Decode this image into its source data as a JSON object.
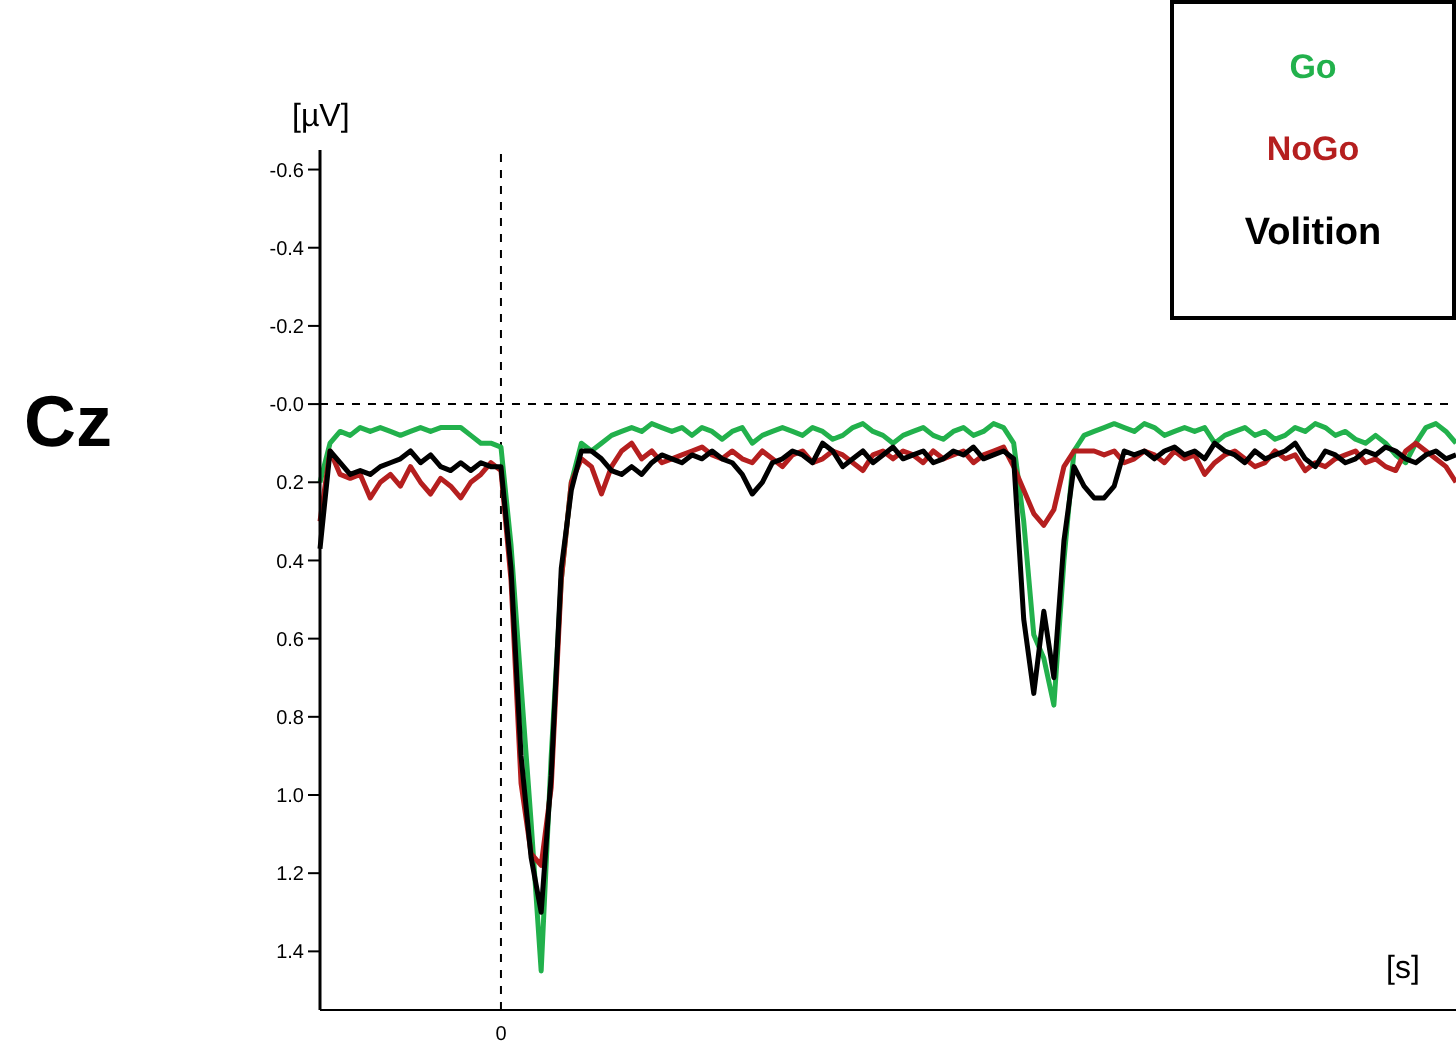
{
  "chart_data": {
    "type": "line",
    "xlabel": "[s]",
    "ylabel": "[µV]",
    "annotations": [
      "Cz"
    ],
    "categories": [
      null,
      null,
      null,
      null,
      null,
      null,
      null,
      null,
      null,
      null,
      null,
      null,
      null,
      null,
      null,
      null,
      null,
      null,
      "0",
      null,
      null,
      null,
      null,
      null,
      null,
      null,
      null,
      null,
      null,
      null,
      null,
      null,
      null,
      null,
      null,
      null,
      null,
      null,
      null,
      null,
      null,
      null,
      null,
      null,
      null,
      null,
      null,
      null,
      null,
      null,
      null,
      null,
      null,
      null,
      null,
      null,
      null,
      null,
      null,
      null,
      null,
      null,
      null,
      null,
      null,
      null,
      null,
      null,
      null,
      null,
      null,
      null,
      null,
      null,
      null,
      null,
      null,
      null,
      null,
      null,
      null,
      null,
      null,
      null,
      null,
      null,
      null,
      null,
      null,
      null,
      null,
      null,
      null,
      null,
      null,
      null,
      null,
      null,
      null,
      null,
      null,
      null,
      null,
      null,
      null,
      null,
      null,
      null,
      null,
      null,
      null,
      null,
      null,
      null
    ],
    "series": [
      {
        "name": "Go",
        "color": "#22b14c",
        "values": [
          0.2,
          0.1,
          0.07,
          0.08,
          0.06,
          0.07,
          0.06,
          0.07,
          0.08,
          0.07,
          0.06,
          0.07,
          0.06,
          0.06,
          0.06,
          0.08,
          0.1,
          0.1,
          0.11,
          0.36,
          0.72,
          1.07,
          1.45,
          0.9,
          0.45,
          0.2,
          0.1,
          0.12,
          0.1,
          0.08,
          0.07,
          0.06,
          0.07,
          0.05,
          0.06,
          0.07,
          0.06,
          0.08,
          0.06,
          0.07,
          0.09,
          0.07,
          0.06,
          0.1,
          0.08,
          0.07,
          0.06,
          0.07,
          0.08,
          0.06,
          0.07,
          0.09,
          0.08,
          0.06,
          0.05,
          0.07,
          0.08,
          0.1,
          0.08,
          0.07,
          0.06,
          0.08,
          0.09,
          0.07,
          0.06,
          0.08,
          0.07,
          0.05,
          0.06,
          0.1,
          0.3,
          0.59,
          0.65,
          0.77,
          0.4,
          0.12,
          0.08,
          0.07,
          0.06,
          0.05,
          0.06,
          0.07,
          0.05,
          0.06,
          0.08,
          0.07,
          0.06,
          0.07,
          0.06,
          0.1,
          0.08,
          0.07,
          0.06,
          0.08,
          0.07,
          0.09,
          0.08,
          0.06,
          0.07,
          0.05,
          0.06,
          0.08,
          0.07,
          0.09,
          0.1,
          0.08,
          0.1,
          0.13,
          0.15,
          0.1,
          0.06,
          0.05,
          0.07,
          0.1
        ]
      },
      {
        "name": "NoGo",
        "color": "#b51f1f",
        "values": [
          0.3,
          0.12,
          0.18,
          0.19,
          0.18,
          0.24,
          0.2,
          0.18,
          0.21,
          0.16,
          0.2,
          0.23,
          0.19,
          0.21,
          0.24,
          0.2,
          0.18,
          0.15,
          0.17,
          0.45,
          0.97,
          1.15,
          1.18,
          0.98,
          0.45,
          0.2,
          0.14,
          0.16,
          0.23,
          0.16,
          0.12,
          0.1,
          0.14,
          0.12,
          0.15,
          0.14,
          0.13,
          0.12,
          0.11,
          0.13,
          0.14,
          0.12,
          0.14,
          0.15,
          0.12,
          0.14,
          0.16,
          0.13,
          0.12,
          0.15,
          0.14,
          0.12,
          0.13,
          0.15,
          0.17,
          0.13,
          0.12,
          0.14,
          0.12,
          0.13,
          0.15,
          0.12,
          0.14,
          0.13,
          0.12,
          0.15,
          0.13,
          0.12,
          0.11,
          0.16,
          0.22,
          0.28,
          0.31,
          0.27,
          0.16,
          0.12,
          0.12,
          0.12,
          0.13,
          0.12,
          0.15,
          0.14,
          0.12,
          0.13,
          0.15,
          0.12,
          0.14,
          0.13,
          0.18,
          0.15,
          0.13,
          0.12,
          0.14,
          0.16,
          0.15,
          0.12,
          0.14,
          0.13,
          0.17,
          0.15,
          0.16,
          0.14,
          0.13,
          0.12,
          0.15,
          0.14,
          0.16,
          0.17,
          0.12,
          0.1,
          0.12,
          0.14,
          0.16,
          0.2
        ]
      },
      {
        "name": "Volition",
        "color": "#000000",
        "values": [
          0.37,
          0.12,
          0.15,
          0.18,
          0.17,
          0.18,
          0.16,
          0.15,
          0.14,
          0.12,
          0.15,
          0.13,
          0.16,
          0.17,
          0.15,
          0.17,
          0.15,
          0.16,
          0.16,
          0.42,
          0.9,
          1.16,
          1.3,
          0.95,
          0.42,
          0.22,
          0.12,
          0.12,
          0.14,
          0.17,
          0.18,
          0.16,
          0.18,
          0.15,
          0.13,
          0.14,
          0.15,
          0.13,
          0.14,
          0.12,
          0.14,
          0.15,
          0.18,
          0.23,
          0.2,
          0.15,
          0.14,
          0.12,
          0.13,
          0.15,
          0.1,
          0.12,
          0.16,
          0.14,
          0.12,
          0.15,
          0.13,
          0.11,
          0.14,
          0.13,
          0.12,
          0.15,
          0.14,
          0.12,
          0.13,
          0.11,
          0.14,
          0.13,
          0.12,
          0.14,
          0.55,
          0.74,
          0.53,
          0.7,
          0.35,
          0.16,
          0.21,
          0.24,
          0.24,
          0.21,
          0.12,
          0.13,
          0.12,
          0.14,
          0.12,
          0.11,
          0.13,
          0.12,
          0.14,
          0.1,
          0.12,
          0.13,
          0.15,
          0.12,
          0.14,
          0.13,
          0.12,
          0.1,
          0.14,
          0.16,
          0.12,
          0.13,
          0.15,
          0.14,
          0.12,
          0.13,
          0.11,
          0.12,
          0.14,
          0.15,
          0.13,
          0.12,
          0.14,
          0.13
        ]
      }
    ],
    "ylim": [
      1.55,
      -0.65
    ],
    "yticks": [
      -0.6,
      -0.4,
      -0.2,
      {
        "value": 0,
        "label": "-0.0"
      },
      0.2,
      0.4,
      0.6,
      0.8,
      {
        "value": 1,
        "label": "1.0"
      },
      1.2,
      1.4
    ],
    "ref_lines": [
      {
        "axis": "y",
        "value": 0,
        "line_style": "dashed",
        "color": "#000000"
      },
      {
        "axis": "x",
        "value": "0",
        "line_style": "dashed",
        "color": "#000000"
      }
    ],
    "legend": "top right",
    "grid": false,
    "marker": "none",
    "line_style": "solid"
  }
}
